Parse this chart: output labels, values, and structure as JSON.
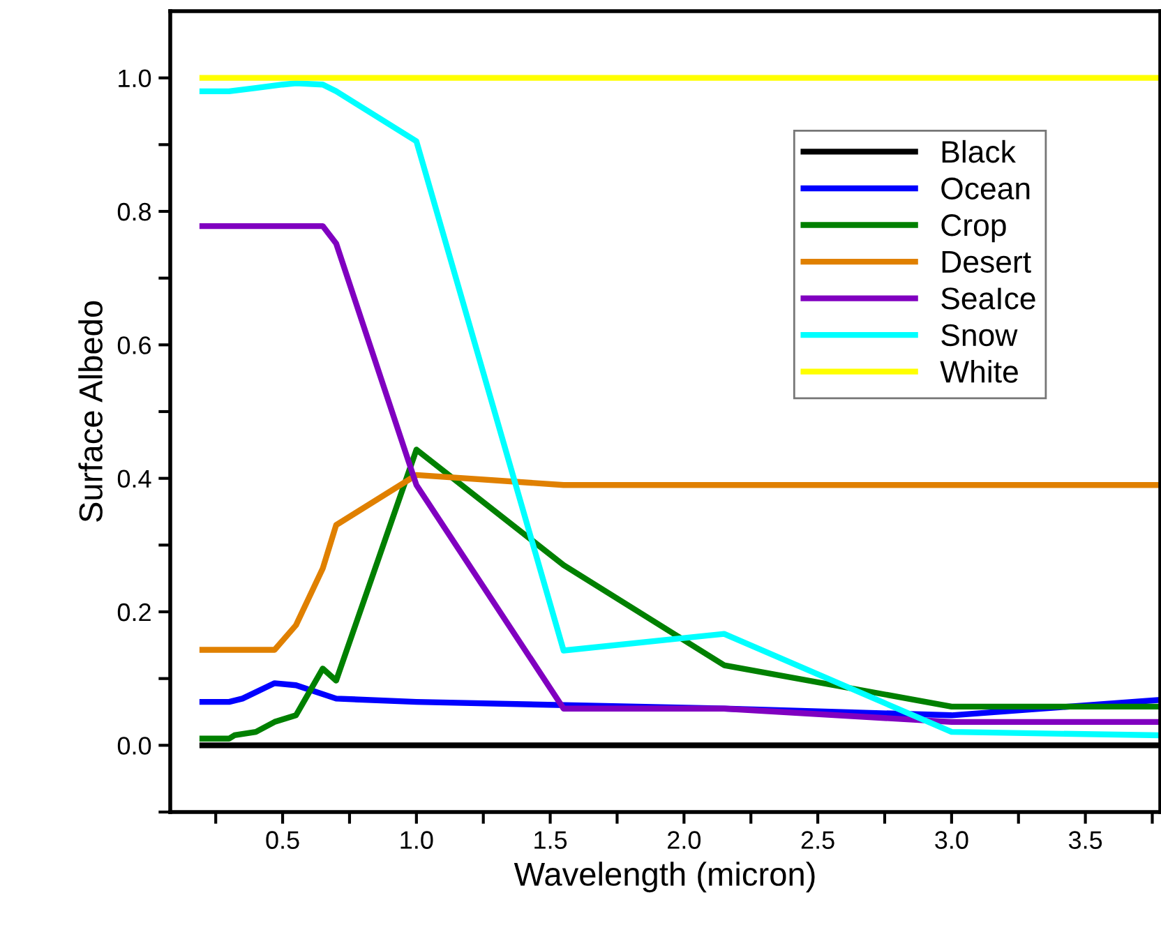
{
  "chart_data": {
    "type": "line",
    "xlabel": "Wavelength (micron)",
    "ylabel": "Surface Albedo",
    "xlim": [
      0.08,
      3.78
    ],
    "ylim": [
      -0.1,
      1.1
    ],
    "xticks": [
      {
        "value": 0.25,
        "label": null
      },
      {
        "value": 0.5,
        "label": "0.5"
      },
      {
        "value": 0.75,
        "label": null
      },
      {
        "value": 1.0,
        "label": "1.0"
      },
      {
        "value": 1.25,
        "label": null
      },
      {
        "value": 1.5,
        "label": "1.5"
      },
      {
        "value": 1.75,
        "label": null
      },
      {
        "value": 2.0,
        "label": "2.0"
      },
      {
        "value": 2.25,
        "label": null
      },
      {
        "value": 2.5,
        "label": "2.5"
      },
      {
        "value": 2.75,
        "label": null
      },
      {
        "value": 3.0,
        "label": "3.0"
      },
      {
        "value": 3.25,
        "label": null
      },
      {
        "value": 3.5,
        "label": "3.5"
      },
      {
        "value": 3.75,
        "label": null
      }
    ],
    "yticks": [
      {
        "value": -0.1,
        "label": null
      },
      {
        "value": 0.0,
        "label": "0.0"
      },
      {
        "value": 0.1,
        "label": null
      },
      {
        "value": 0.2,
        "label": "0.2"
      },
      {
        "value": 0.3,
        "label": null
      },
      {
        "value": 0.4,
        "label": "0.4"
      },
      {
        "value": 0.5,
        "label": null
      },
      {
        "value": 0.6,
        "label": "0.6"
      },
      {
        "value": 0.7,
        "label": null
      },
      {
        "value": 0.8,
        "label": "0.8"
      },
      {
        "value": 0.9,
        "label": null
      },
      {
        "value": 1.0,
        "label": "1.0"
      }
    ],
    "grid": false,
    "legend": "top right",
    "marker": "none",
    "line_style": "solid",
    "series": [
      {
        "name": "Black",
        "color": "#000000",
        "x": [
          0.2,
          3.78
        ],
        "values": [
          0.0,
          0.0
        ]
      },
      {
        "name": "Ocean",
        "color": "#0000ff",
        "x": [
          0.2,
          0.3,
          0.35,
          0.47,
          0.55,
          0.7,
          1.0,
          2.15,
          3.0,
          3.78
        ],
        "values": [
          0.065,
          0.065,
          0.07,
          0.093,
          0.09,
          0.07,
          0.065,
          0.055,
          0.045,
          0.068
        ]
      },
      {
        "name": "Crop",
        "color": "#008000",
        "x": [
          0.2,
          0.3,
          0.32,
          0.4,
          0.47,
          0.55,
          0.65,
          0.7,
          1.0,
          1.55,
          2.15,
          3.0,
          3.78
        ],
        "values": [
          0.01,
          0.01,
          0.015,
          0.02,
          0.035,
          0.045,
          0.115,
          0.097,
          0.443,
          0.27,
          0.12,
          0.058,
          0.058
        ]
      },
      {
        "name": "Desert",
        "color": "#e08000",
        "x": [
          0.2,
          0.47,
          0.55,
          0.65,
          0.7,
          1.0,
          1.55,
          3.78
        ],
        "values": [
          0.143,
          0.143,
          0.18,
          0.265,
          0.33,
          0.405,
          0.39,
          0.39
        ]
      },
      {
        "name": "SeaIce",
        "color": "#8000c0",
        "x": [
          0.2,
          0.65,
          0.7,
          1.0,
          1.55,
          2.15,
          3.0,
          3.78
        ],
        "values": [
          0.778,
          0.778,
          0.752,
          0.39,
          0.055,
          0.055,
          0.035,
          0.035
        ]
      },
      {
        "name": "Snow",
        "color": "#00ffff",
        "x": [
          0.2,
          0.3,
          0.4,
          0.5,
          0.55,
          0.65,
          0.7,
          1.0,
          1.55,
          2.15,
          3.0,
          3.78
        ],
        "values": [
          0.98,
          0.98,
          0.985,
          0.99,
          0.992,
          0.99,
          0.98,
          0.905,
          0.142,
          0.167,
          0.02,
          0.015
        ]
      },
      {
        "name": "White",
        "color": "#ffff00",
        "x": [
          0.2,
          3.78
        ],
        "values": [
          1.0,
          1.0
        ]
      }
    ]
  }
}
